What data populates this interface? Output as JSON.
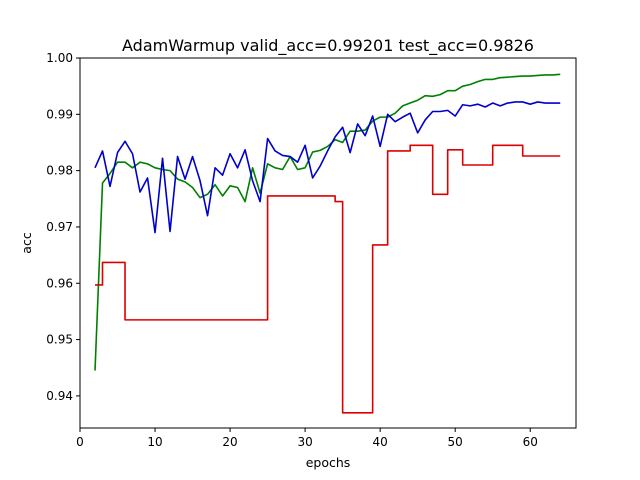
{
  "chart_data": {
    "type": "line",
    "title": "AdamWarmup valid_acc=0.99201  test_acc=0.9826",
    "xlabel": "epochs",
    "ylabel": "acc",
    "xlim": [
      0,
      66.1
    ],
    "ylim": [
      0.9343,
      1.0
    ],
    "x_ticks": [
      0,
      10,
      20,
      30,
      40,
      50,
      60
    ],
    "y_ticks": [
      0.94,
      0.95,
      0.96,
      0.97,
      0.98,
      0.99,
      1.0
    ],
    "x_tick_labels": [
      "0",
      "10",
      "20",
      "30",
      "40",
      "50",
      "60"
    ],
    "y_tick_labels": [
      "0.94",
      "0.95",
      "0.96",
      "0.97",
      "0.98",
      "0.99",
      "1.00"
    ],
    "grid": false,
    "series": [
      {
        "color": "#008000",
        "x": [
          2,
          3,
          4,
          5,
          6,
          7,
          8,
          9,
          10,
          11,
          12,
          13,
          14,
          15,
          16,
          17,
          18,
          19,
          20,
          21,
          22,
          23,
          24,
          25,
          26,
          27,
          28,
          29,
          30,
          31,
          32,
          33,
          34,
          35,
          36,
          37,
          38,
          39,
          40,
          41,
          42,
          43,
          44,
          45,
          46,
          47,
          48,
          49,
          50,
          51,
          52,
          53,
          54,
          55,
          56,
          57,
          58,
          59,
          60,
          61,
          62,
          63,
          64
        ],
        "values": [
          0.9445,
          0.9778,
          0.9795,
          0.9815,
          0.9815,
          0.9805,
          0.9815,
          0.9812,
          0.9805,
          0.9802,
          0.98,
          0.9785,
          0.978,
          0.977,
          0.9752,
          0.9758,
          0.9775,
          0.9755,
          0.9773,
          0.977,
          0.9745,
          0.9805,
          0.976,
          0.9812,
          0.9805,
          0.9802,
          0.9825,
          0.9802,
          0.9805,
          0.9833,
          0.9836,
          0.9843,
          0.9855,
          0.985,
          0.987,
          0.987,
          0.9872,
          0.9888,
          0.9895,
          0.9895,
          0.9902,
          0.9915,
          0.992,
          0.9925,
          0.9933,
          0.9932,
          0.9935,
          0.9942,
          0.9942,
          0.995,
          0.9953,
          0.9958,
          0.9962,
          0.9962,
          0.9965,
          0.9966,
          0.9967,
          0.9968,
          0.9968,
          0.9969,
          0.997,
          0.997,
          0.9971
        ],
        "step": false
      },
      {
        "color": "#0000cc",
        "x": [
          2,
          3,
          4,
          5,
          6,
          7,
          8,
          9,
          10,
          11,
          12,
          13,
          14,
          15,
          16,
          17,
          18,
          19,
          20,
          21,
          22,
          23,
          24,
          25,
          26,
          27,
          28,
          29,
          30,
          31,
          32,
          33,
          34,
          35,
          36,
          37,
          38,
          39,
          40,
          41,
          42,
          43,
          44,
          45,
          46,
          47,
          48,
          49,
          50,
          51,
          52,
          53,
          54,
          55,
          56,
          57,
          58,
          59,
          60,
          61,
          62,
          63,
          64
        ],
        "values": [
          0.9805,
          0.9835,
          0.9772,
          0.9832,
          0.9852,
          0.983,
          0.9762,
          0.9787,
          0.969,
          0.9822,
          0.9692,
          0.9825,
          0.9785,
          0.9825,
          0.9782,
          0.972,
          0.9805,
          0.9792,
          0.983,
          0.9805,
          0.9837,
          0.9782,
          0.9745,
          0.9857,
          0.9835,
          0.9827,
          0.9825,
          0.9815,
          0.9845,
          0.9787,
          0.9808,
          0.9835,
          0.986,
          0.9877,
          0.9832,
          0.9883,
          0.9862,
          0.9897,
          0.9843,
          0.99,
          0.9887,
          0.9895,
          0.9902,
          0.9867,
          0.989,
          0.9905,
          0.9905,
          0.9907,
          0.9897,
          0.9917,
          0.9915,
          0.9918,
          0.9913,
          0.992,
          0.9915,
          0.992,
          0.9922,
          0.9922,
          0.9918,
          0.9922,
          0.992,
          0.992,
          0.992
        ],
        "step": false
      },
      {
        "color": "#dd0000",
        "x": [
          2,
          3,
          6,
          25,
          34,
          35,
          39,
          41,
          44,
          47,
          49,
          51,
          55,
          59,
          64
        ],
        "values": [
          0.9597,
          0.9637,
          0.9535,
          0.9755,
          0.9745,
          0.937,
          0.9668,
          0.9835,
          0.9845,
          0.9758,
          0.9837,
          0.981,
          0.9845,
          0.9826,
          0.9826
        ],
        "step": true
      }
    ]
  }
}
